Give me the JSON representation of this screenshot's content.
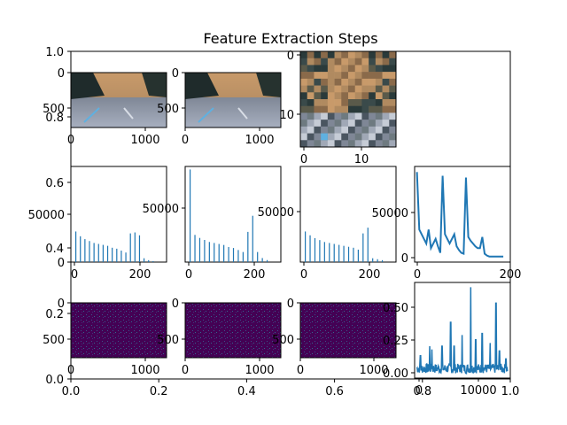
{
  "title": "Feature Extraction Steps",
  "colors": {
    "line": "#1f77b4",
    "bars": "#1f77b4",
    "heat_bg": "#440154",
    "heat_fg": "#3b528b",
    "axes": "#000000"
  },
  "outer_axes": {
    "x_ticks": [
      "0.0",
      "0.2",
      "0.4",
      "0.6",
      "0.8",
      "1.0"
    ],
    "y_ticks": [
      "0.0",
      "0.2",
      "0.4",
      "0.6",
      "0.8",
      "1.0"
    ]
  },
  "chart_data": [
    {
      "id": "road-1",
      "type": "image",
      "x_ticks": [
        "0",
        "1000"
      ],
      "y_ticks": [
        "0",
        "500"
      ],
      "description_colors": [
        "#8a6a4a",
        "#2b3a3a",
        "#9aa0b0"
      ]
    },
    {
      "id": "road-2",
      "type": "image",
      "x_ticks": [
        "0",
        "1000"
      ],
      "y_ticks": [
        "0",
        "500"
      ]
    },
    {
      "id": "pixel-crop",
      "type": "image",
      "x_ticks": [
        "0",
        "10"
      ],
      "y_ticks": [
        "0",
        "10"
      ]
    },
    {
      "id": "hist-1",
      "type": "bar",
      "x_ticks": [
        "0",
        "200"
      ],
      "y_ticks": [
        "0",
        "50000"
      ],
      "ylim": [
        0,
        100000
      ],
      "values": [
        32000,
        27000,
        24000,
        22000,
        20000,
        19000,
        18000,
        17000,
        15000,
        14000,
        12000,
        10000,
        30000,
        31000,
        28000,
        4000,
        2000,
        1000
      ]
    },
    {
      "id": "hist-2",
      "type": "bar",
      "x_ticks": [
        "0",
        "200"
      ],
      "y_ticks": [
        "0",
        "50000"
      ],
      "ylim": [
        0,
        95000
      ],
      "values": [
        92000,
        27000,
        24000,
        22000,
        20000,
        19000,
        18000,
        17000,
        15000,
        14000,
        12000,
        10000,
        30000,
        46000,
        10000,
        4000,
        2000
      ]
    },
    {
      "id": "hist-3",
      "type": "bar",
      "x_ticks": [
        "0",
        "200"
      ],
      "y_ticks": [
        "0",
        "50000"
      ],
      "ylim": [
        0,
        100000
      ],
      "values": [
        32000,
        28000,
        25000,
        23000,
        21000,
        20000,
        19000,
        18000,
        17000,
        16000,
        15000,
        13000,
        30000,
        36000,
        4000,
        3000,
        2000
      ]
    },
    {
      "id": "hist-line",
      "type": "line",
      "x_ticks": [
        "0",
        "200"
      ],
      "y_ticks": [
        "0",
        "50000"
      ],
      "xlim": [
        -5,
        200
      ],
      "ylim": [
        -5000,
        98000
      ],
      "x": [
        0,
        5,
        10,
        15,
        20,
        25,
        30,
        35,
        40,
        45,
        50,
        55,
        60,
        65,
        70,
        75,
        80,
        85,
        90,
        95,
        100,
        105,
        110,
        115,
        120,
        125,
        130,
        135,
        140,
        145,
        150,
        155,
        160,
        165,
        170,
        175,
        180,
        185
      ],
      "y": [
        92000,
        30000,
        25000,
        20000,
        15000,
        30000,
        10000,
        15000,
        20000,
        12000,
        5000,
        88000,
        25000,
        20000,
        15000,
        20000,
        25000,
        12000,
        8000,
        5000,
        4000,
        86000,
        22000,
        18000,
        15000,
        12000,
        10000,
        10000,
        22000,
        4000,
        2000,
        1000,
        1000,
        1000,
        1000,
        1000,
        1000,
        1000
      ]
    },
    {
      "id": "hog-1",
      "type": "heatmap",
      "x_ticks": [
        "0",
        "1000"
      ],
      "y_ticks": [
        "0",
        "500"
      ]
    },
    {
      "id": "hog-2",
      "type": "heatmap",
      "x_ticks": [
        "0",
        "1000"
      ],
      "y_ticks": [
        "0",
        "500"
      ]
    },
    {
      "id": "hog-3",
      "type": "heatmap",
      "x_ticks": [
        "0",
        "1000"
      ],
      "y_ticks": [
        "0",
        "500"
      ]
    },
    {
      "id": "feature-vector",
      "type": "line",
      "x_ticks": [
        "0",
        "10000"
      ],
      "y_ticks": [
        "0.00",
        "0.25",
        "0.50"
      ],
      "xlim": [
        -300,
        13000
      ],
      "ylim": [
        -0.02,
        0.58
      ],
      "spikes": [
        [
          500,
          0.12
        ],
        [
          1800,
          0.18
        ],
        [
          2100,
          0.16
        ],
        [
          3500,
          0.18
        ],
        [
          4700,
          0.33
        ],
        [
          5200,
          0.18
        ],
        [
          6300,
          0.25
        ],
        [
          7500,
          0.55
        ],
        [
          8200,
          0.22
        ],
        [
          9100,
          0.26
        ],
        [
          10200,
          0.2
        ],
        [
          11000,
          0.45
        ],
        [
          11500,
          0.15
        ],
        [
          12400,
          0.1
        ]
      ]
    }
  ]
}
